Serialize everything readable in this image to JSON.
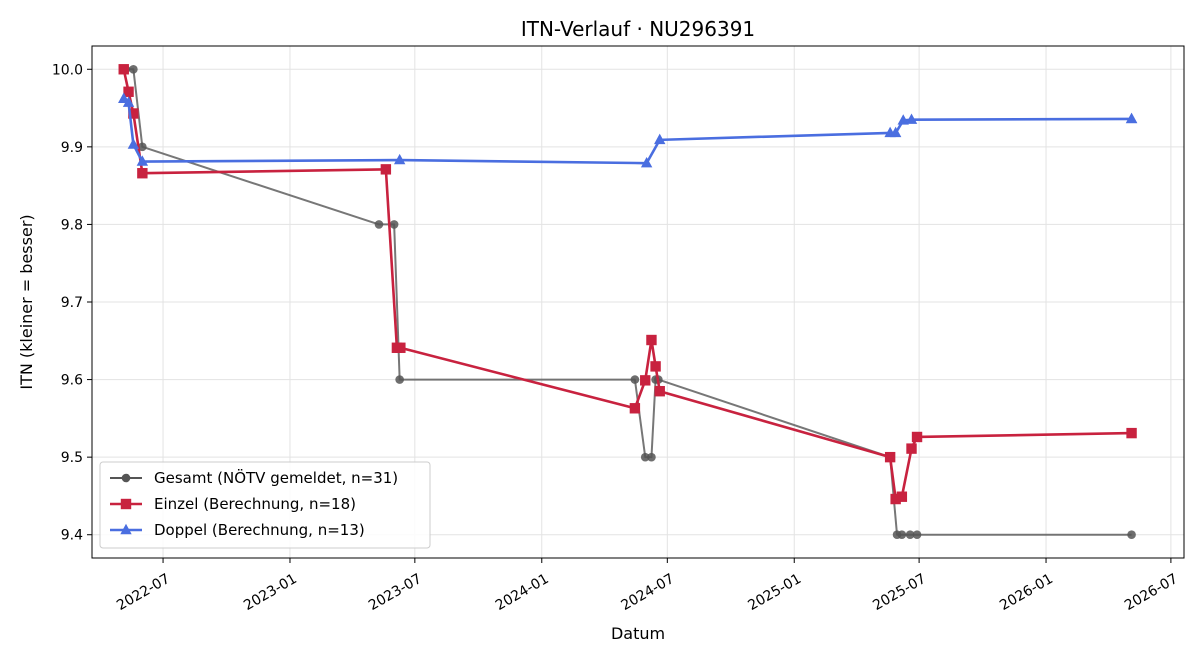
{
  "chart_data": {
    "type": "line",
    "title": "ITN-Verlauf · NU296391",
    "xlabel": "Datum",
    "ylabel": "ITN  (kleiner = besser)",
    "xlim": [
      "2022-03-20",
      "2026-07-20"
    ],
    "ylim": [
      9.37,
      10.03
    ],
    "x_ticks": [
      "2022-07",
      "2023-01",
      "2023-07",
      "2024-01",
      "2024-07",
      "2025-01",
      "2025-07",
      "2026-01",
      "2026-07"
    ],
    "y_ticks": [
      "9.4",
      "9.5",
      "9.6",
      "9.7",
      "9.8",
      "9.9",
      "10.0"
    ],
    "grid": true,
    "legend_position": "lower-left",
    "series": [
      {
        "name": "Gesamt (NÖTV gemeldet, n=31)",
        "color": "#555555",
        "marker": "circle",
        "points": [
          [
            "2022-05-05",
            10.0
          ],
          [
            "2022-05-08",
            10.0
          ],
          [
            "2022-05-19",
            10.0
          ],
          [
            "2022-06-01",
            9.9
          ],
          [
            "2023-05-10",
            9.8
          ],
          [
            "2023-06-01",
            9.8
          ],
          [
            "2023-06-09",
            9.6
          ],
          [
            "2024-05-15",
            9.6
          ],
          [
            "2024-05-30",
            9.5
          ],
          [
            "2024-06-08",
            9.5
          ],
          [
            "2024-06-14",
            9.6
          ],
          [
            "2024-06-18",
            9.6
          ],
          [
            "2025-05-20",
            9.5
          ],
          [
            "2025-05-30",
            9.4
          ],
          [
            "2025-06-06",
            9.4
          ],
          [
            "2025-06-18",
            9.4
          ],
          [
            "2025-06-28",
            9.4
          ],
          [
            "2026-05-05",
            9.4
          ]
        ]
      },
      {
        "name": "Einzel (Berechnung, n=18)",
        "color": "#c8223f",
        "marker": "square",
        "points": [
          [
            "2022-05-05",
            10.0
          ],
          [
            "2022-05-12",
            9.971
          ],
          [
            "2022-05-19",
            9.943
          ],
          [
            "2022-06-01",
            9.866
          ],
          [
            "2023-05-20",
            9.871
          ],
          [
            "2023-06-05",
            9.641
          ],
          [
            "2023-06-10",
            9.641
          ],
          [
            "2024-05-15",
            9.563
          ],
          [
            "2024-05-30",
            9.599
          ],
          [
            "2024-06-08",
            9.651
          ],
          [
            "2024-06-14",
            9.617
          ],
          [
            "2024-06-20",
            9.585
          ],
          [
            "2025-05-20",
            9.5
          ],
          [
            "2025-05-28",
            9.446
          ],
          [
            "2025-06-06",
            9.449
          ],
          [
            "2025-06-20",
            9.511
          ],
          [
            "2025-06-28",
            9.526
          ],
          [
            "2026-05-05",
            9.531
          ]
        ]
      },
      {
        "name": "Doppel (Berechnung, n=13)",
        "color": "#4a6ee0",
        "marker": "triangle",
        "points": [
          [
            "2022-05-05",
            9.962
          ],
          [
            "2022-05-12",
            9.957
          ],
          [
            "2022-05-19",
            9.903
          ],
          [
            "2022-06-01",
            9.881
          ],
          [
            "2023-06-09",
            9.883
          ],
          [
            "2024-06-01",
            9.879
          ],
          [
            "2024-06-20",
            9.909
          ],
          [
            "2025-05-20",
            9.918
          ],
          [
            "2025-05-28",
            9.918
          ],
          [
            "2025-06-08",
            9.934
          ],
          [
            "2025-06-20",
            9.935
          ],
          [
            "2026-05-05",
            9.936
          ],
          [
            "2026-05-05",
            9.936
          ]
        ]
      }
    ]
  }
}
